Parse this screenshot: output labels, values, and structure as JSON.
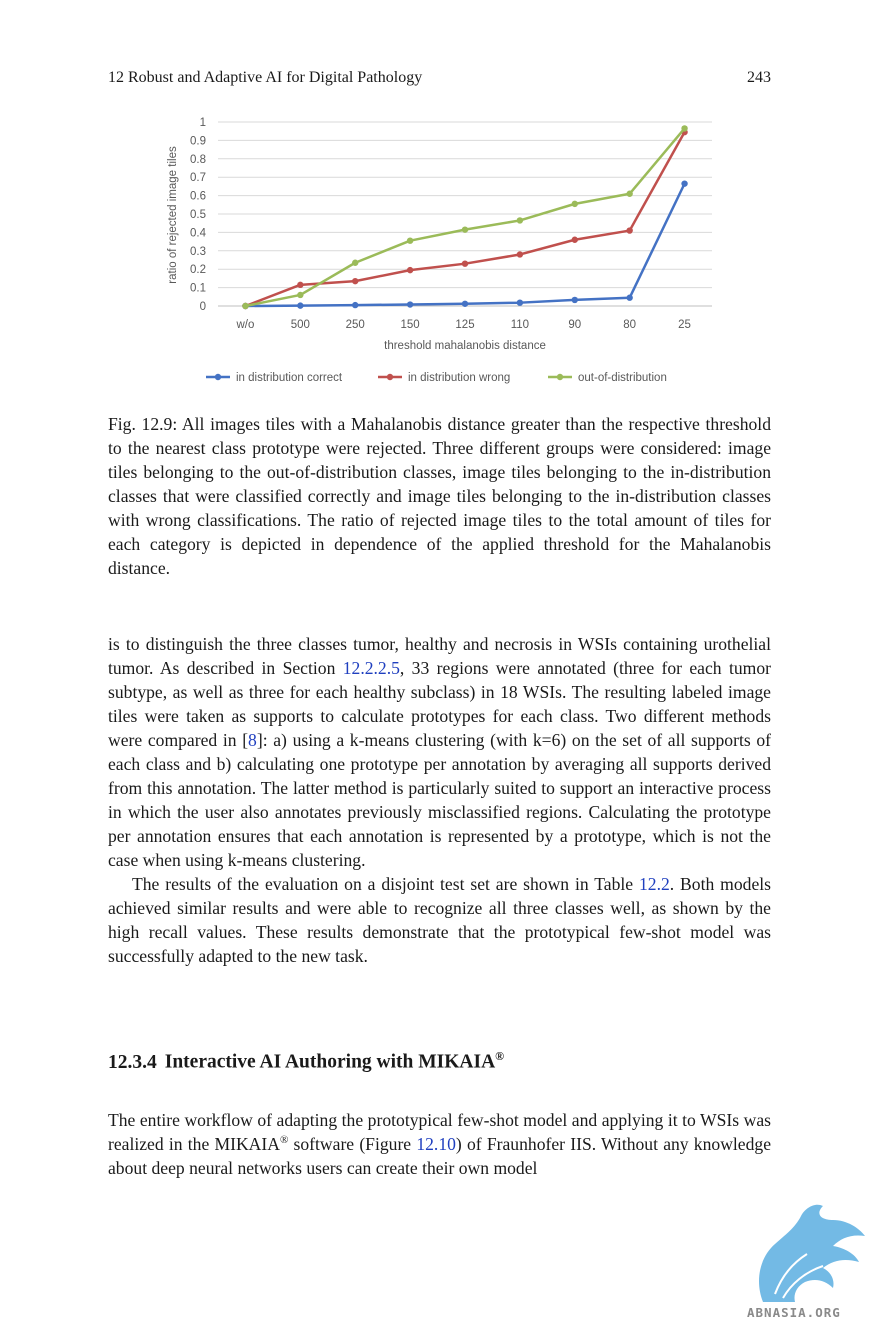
{
  "header": {
    "chapter": "12  Robust and Adaptive AI for Digital Pathology",
    "page_number": "243"
  },
  "chart_data": {
    "type": "line",
    "xlabel": "threshold mahalanobis distance",
    "ylabel": "ratio of rejected image tiles",
    "categories": [
      "w/o",
      "500",
      "250",
      "150",
      "125",
      "110",
      "90",
      "80",
      "25"
    ],
    "yticks": [
      "0",
      "0.1",
      "0.2",
      "0.3",
      "0.4",
      "0.5",
      "0.6",
      "0.7",
      "0.8",
      "0.9",
      "1"
    ],
    "ylim": [
      0,
      1
    ],
    "grid": true,
    "legend_position": "bottom",
    "series": [
      {
        "name": "in distribution correct",
        "color": "#4472c4",
        "values": [
          0,
          0.002,
          0.005,
          0.008,
          0.012,
          0.018,
          0.033,
          0.045,
          0.665
        ]
      },
      {
        "name": "in distribution wrong",
        "color": "#c0504d",
        "values": [
          0,
          0.115,
          0.135,
          0.195,
          0.23,
          0.28,
          0.36,
          0.41,
          0.945
        ]
      },
      {
        "name": "out-of-distribution",
        "color": "#9bbb59",
        "values": [
          0,
          0.06,
          0.235,
          0.355,
          0.415,
          0.465,
          0.555,
          0.61,
          0.965
        ]
      }
    ]
  },
  "caption": "Fig. 12.9: All images tiles with a Mahalanobis distance greater than the respective threshold to the nearest class prototype were rejected. Three different groups were considered: image tiles belonging to the out-of-distribution classes, image tiles belonging to the in-distribution classes that were classified correctly and image tiles belonging to the in-distribution classes with wrong classifications. The ratio of rejected image tiles to the total amount of tiles for each category is depicted in dependence of the applied threshold for the Mahalanobis distance.",
  "body": {
    "p1_a": "is to distinguish the three classes tumor, healthy and necrosis in WSIs containing urothelial tumor. As described in Section ",
    "p1_ref1": "12.2.2.5",
    "p1_b": ", 33 regions were annotated (three for each tumor subtype, as well as three for each healthy subclass) in 18 WSIs. The resulting labeled image tiles were taken as supports to calculate prototypes for each class. Two different methods were compared in [",
    "p1_ref2": "8",
    "p1_c": "]: a) using a k-means clustering (with k=6) on the set of all supports of each class and b) calculating one prototype per annotation by averaging all supports derived from this annotation. The latter method is particularly suited to support an interactive process in which the user also annotates previously misclassified regions. Calculating the prototype per annotation ensures that each annotation is represented by a prototype, which is not the case when using k-means clustering.",
    "p2_a": "The results of the evaluation on a disjoint test set are shown in Table ",
    "p2_ref": "12.2",
    "p2_b": ". Both models achieved similar results and were able to recognize all three classes well, as shown by the high recall values. These results demonstrate that the prototypical few-shot model was successfully adapted to the new task."
  },
  "section": {
    "number": "12.3.4",
    "title": "Interactive AI Authoring with MIKAIA",
    "reg": "®"
  },
  "body2": {
    "a": "The entire workflow of adapting the prototypical few-shot model and applying it to WSIs was realized in the MIKAIA",
    "reg": "®",
    "b": " software (Figure ",
    "ref": "12.10",
    "c": ") of Fraunhofer IIS. Without any knowledge about deep neural networks users can create their own model"
  },
  "watermark": {
    "text": "ABNASIA.ORG",
    "color": "#5aaee0"
  }
}
